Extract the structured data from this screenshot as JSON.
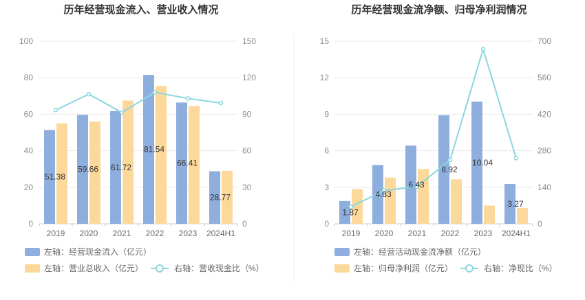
{
  "chart_data": [
    {
      "type": "bar",
      "title": "历年经营现金流入、营业收入情况",
      "categories": [
        "2019",
        "2020",
        "2021",
        "2022",
        "2023",
        "2024H1"
      ],
      "left_axis": {
        "min": 0,
        "max": 100,
        "ticks": [
          "0",
          "20",
          "40",
          "60",
          "80",
          "100"
        ]
      },
      "right_axis": {
        "min": 0,
        "max": 150,
        "ticks": [
          "0",
          "30",
          "60",
          "90",
          "120",
          "150"
        ]
      },
      "series": [
        {
          "name": "左轴：经营现金流入（亿元）",
          "kind": "bar",
          "axis": "left",
          "color": "#8eaede",
          "values": [
            51.38,
            59.66,
            61.72,
            81.54,
            66.41,
            28.77
          ],
          "labels": [
            "51.38",
            "59.66",
            "61.72",
            "81.54",
            "66.41",
            "28.77"
          ]
        },
        {
          "name": "左轴：营业总收入（亿元）",
          "kind": "bar",
          "axis": "left",
          "color": "#fdd89b",
          "values": [
            55,
            56,
            67.5,
            75.5,
            64.5,
            29
          ]
        },
        {
          "name": "右轴：营收现金比（%）",
          "kind": "line",
          "axis": "right",
          "color": "#8ad7df",
          "values": [
            93.4,
            106.5,
            91.4,
            108.0,
            103.0,
            99.2
          ]
        }
      ]
    },
    {
      "type": "bar",
      "title": "历年经营现金流净额、归母净利润情况",
      "categories": [
        "2019",
        "2020",
        "2021",
        "2022",
        "2023",
        "2024H1"
      ],
      "left_axis": {
        "min": 0,
        "max": 15,
        "ticks": [
          "0",
          "3",
          "6",
          "9",
          "12",
          "15"
        ]
      },
      "right_axis": {
        "min": 0,
        "max": 700,
        "ticks": [
          "0",
          "140",
          "280",
          "420",
          "560",
          "700"
        ]
      },
      "series": [
        {
          "name": "左轴：经营活动现金流净额（亿元）",
          "kind": "bar",
          "axis": "left",
          "color": "#8eaede",
          "values": [
            1.87,
            4.83,
            6.43,
            8.92,
            10.04,
            3.27
          ],
          "labels": [
            "1.87",
            "4.83",
            "6.43",
            "8.92",
            "10.04",
            "3.27"
          ]
        },
        {
          "name": "左轴：归母净利润（亿元）",
          "kind": "bar",
          "axis": "left",
          "color": "#fdd89b",
          "values": [
            2.85,
            3.8,
            4.5,
            3.65,
            1.5,
            1.3
          ]
        },
        {
          "name": "右轴：净现比（%）",
          "kind": "line",
          "axis": "right",
          "color": "#8ad7df",
          "values": [
            65.6,
            127.1,
            142.9,
            244.4,
            669.3,
            251.5
          ]
        }
      ]
    }
  ]
}
